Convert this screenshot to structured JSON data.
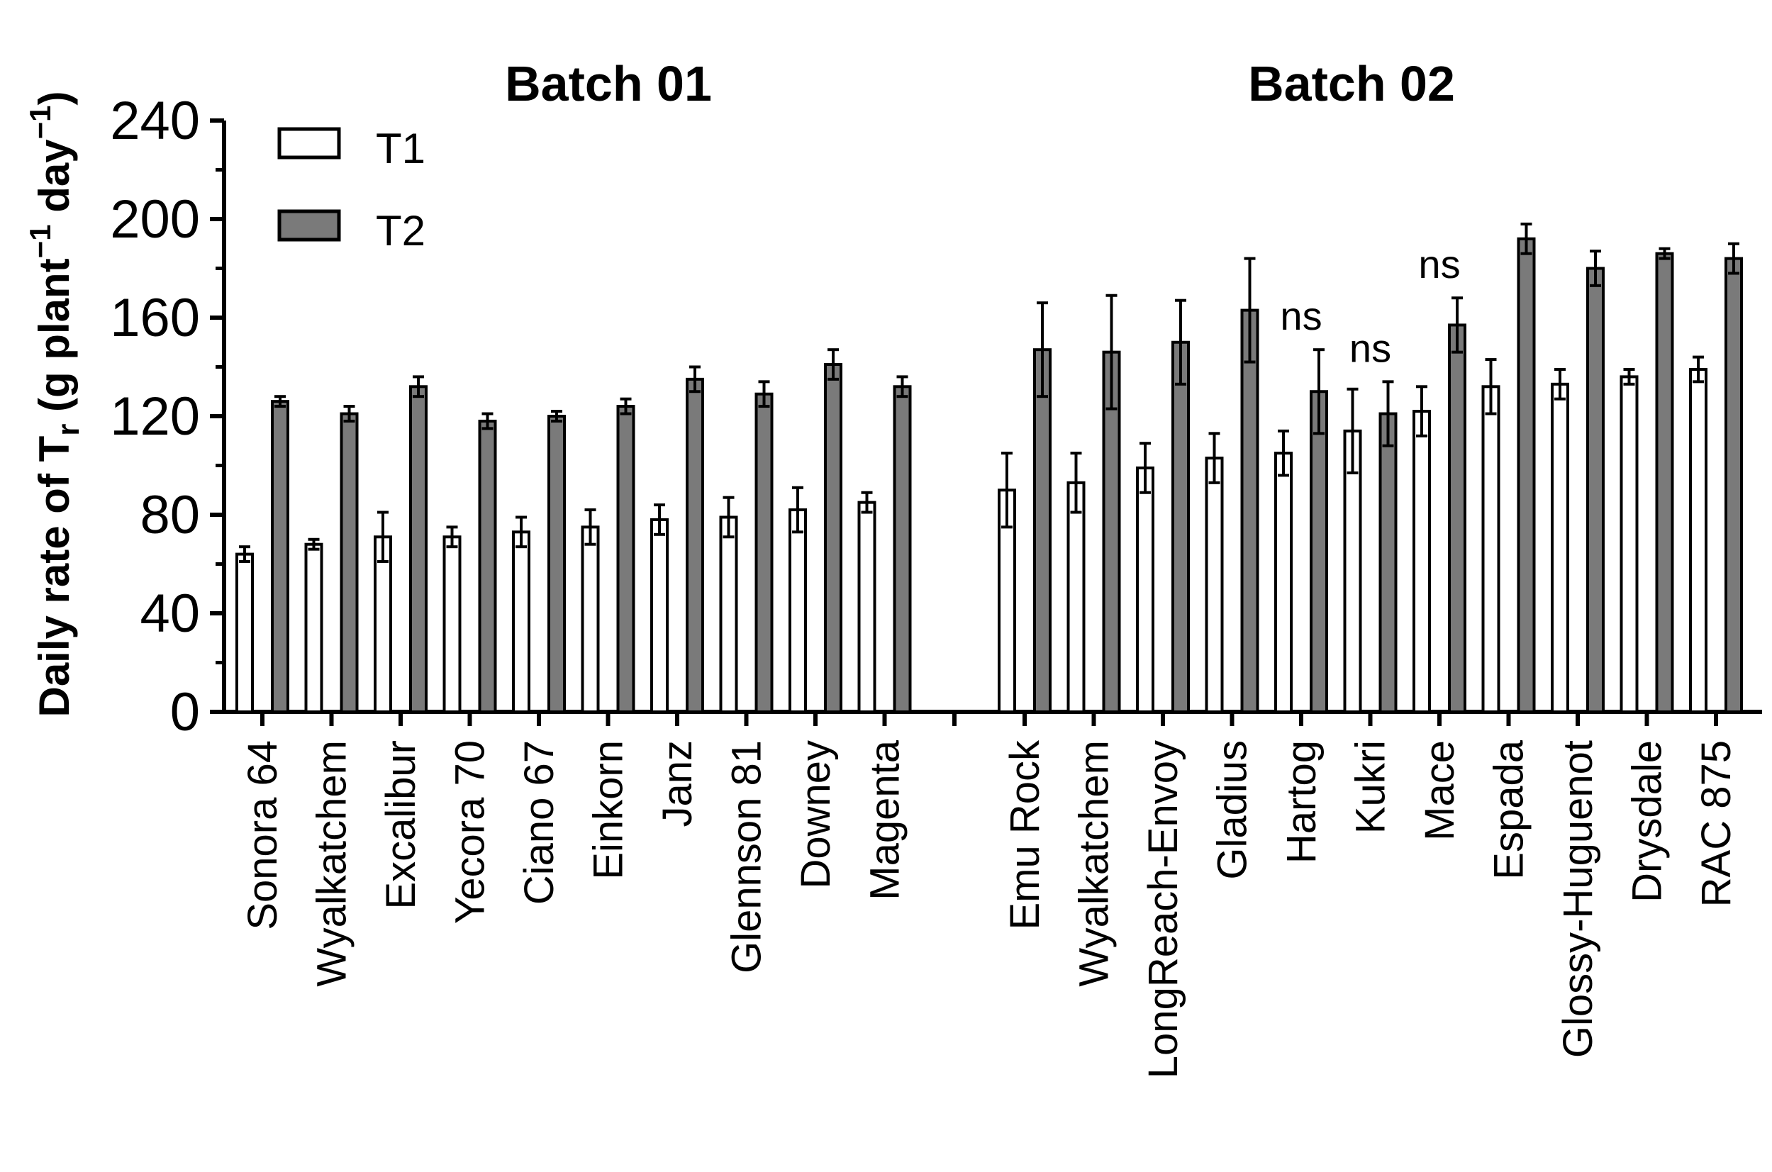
{
  "chart_data": {
    "type": "bar",
    "ylabel": {
      "prefix": "Daily rate of T",
      "sub": "r",
      "unit_open": " (g plant",
      "exp1": "−1",
      "unit_mid": " day",
      "exp2": "−1",
      "unit_close": ")"
    },
    "ylim": [
      0,
      240
    ],
    "yticks": [
      0,
      40,
      80,
      120,
      160,
      200,
      240
    ],
    "legend": {
      "position": "top-left",
      "entries": [
        {
          "name": "T1",
          "color": "#ffffff"
        },
        {
          "name": "T2",
          "color": "#7a7a7a"
        }
      ]
    },
    "groups": [
      {
        "title": "Batch 01",
        "categories": [
          "Sonora 64",
          "Wyalkatchem",
          "Excalibur",
          "Yecora 70",
          "Ciano 67",
          "Einkorn",
          "Janz",
          "Glennson 81",
          "Downey",
          "Magenta"
        ],
        "series": [
          {
            "name": "T1",
            "values": [
              64,
              68,
              71,
              71,
              73,
              75,
              78,
              79,
              82,
              85
            ],
            "errors": [
              3,
              2,
              10,
              4,
              6,
              7,
              6,
              8,
              9,
              4
            ]
          },
          {
            "name": "T2",
            "values": [
              126,
              121,
              132,
              118,
              120,
              124,
              135,
              129,
              141,
              132
            ],
            "errors": [
              2,
              3,
              4,
              3,
              2,
              3,
              5,
              5,
              6,
              4
            ]
          }
        ],
        "annotations": [
          "",
          "",
          "",
          "",
          "",
          "",
          "",
          "",
          "",
          ""
        ]
      },
      {
        "title": "Batch 02",
        "categories": [
          "Emu Rock",
          "Wyalkatchem",
          "LongReach-Envoy",
          "Gladius",
          "Hartog",
          "Kukri",
          "Mace",
          "Espada",
          "Glossy-Huguenot",
          "Drysdale",
          "RAC 875"
        ],
        "series": [
          {
            "name": "T1",
            "values": [
              90,
              93,
              99,
              103,
              105,
              114,
              122,
              132,
              133,
              136,
              139
            ],
            "errors": [
              15,
              12,
              10,
              10,
              9,
              17,
              10,
              11,
              6,
              3,
              5
            ]
          },
          {
            "name": "T2",
            "values": [
              147,
              146,
              150,
              163,
              130,
              121,
              157,
              192,
              180,
              186,
              184
            ],
            "errors": [
              19,
              23,
              17,
              21,
              17,
              13,
              11,
              6,
              7,
              2,
              6
            ]
          }
        ],
        "annotations": [
          "",
          "",
          "",
          "",
          "ns",
          "ns",
          "ns",
          "",
          "",
          "",
          ""
        ]
      }
    ]
  }
}
